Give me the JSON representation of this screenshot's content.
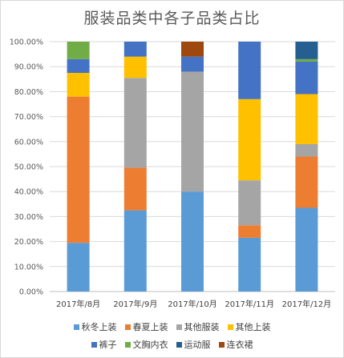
{
  "chart_data": {
    "type": "stacked-bar-100",
    "title": "服装品类中各子品类占比",
    "categories": [
      "2017年/8月",
      "2017年/9月",
      "2017年/10月",
      "2017年/11月",
      "2017年/12月"
    ],
    "ylim": [
      0,
      100
    ],
    "yticks": [
      0,
      10,
      20,
      30,
      40,
      50,
      60,
      70,
      80,
      90,
      100
    ],
    "ytick_labels": [
      "0.00%",
      "10.00%",
      "20.00%",
      "30.00%",
      "40.00%",
      "50.00%",
      "60.00%",
      "70.00%",
      "80.00%",
      "90.00%",
      "100.00%"
    ],
    "grid": true,
    "legend_position": "bottom",
    "series": [
      {
        "name": "秋冬上装",
        "color": "#5b9bd5",
        "values": [
          19.5,
          32.5,
          40.0,
          21.5,
          33.5
        ]
      },
      {
        "name": "春夏上装",
        "color": "#ed7d31",
        "values": [
          58.5,
          17.0,
          0.0,
          5.0,
          20.5
        ]
      },
      {
        "name": "其他服装",
        "color": "#a5a5a5",
        "values": [
          0.0,
          36.0,
          48.0,
          18.0,
          5.0
        ]
      },
      {
        "name": "其他上装",
        "color": "#ffc000",
        "values": [
          9.5,
          8.5,
          0.0,
          32.5,
          20.0
        ]
      },
      {
        "name": "裤子",
        "color": "#4472c4",
        "values": [
          5.5,
          6.0,
          6.0,
          23.0,
          13.0
        ]
      },
      {
        "name": "文胸内衣",
        "color": "#70ad47",
        "values": [
          7.0,
          0.0,
          0.0,
          0.0,
          1.0
        ]
      },
      {
        "name": "运动服",
        "color": "#255e91",
        "values": [
          0.0,
          0.0,
          0.0,
          0.0,
          7.0
        ]
      },
      {
        "name": "连衣裙",
        "color": "#9e480e",
        "values": [
          0.0,
          0.0,
          6.0,
          0.0,
          0.0
        ]
      }
    ]
  }
}
